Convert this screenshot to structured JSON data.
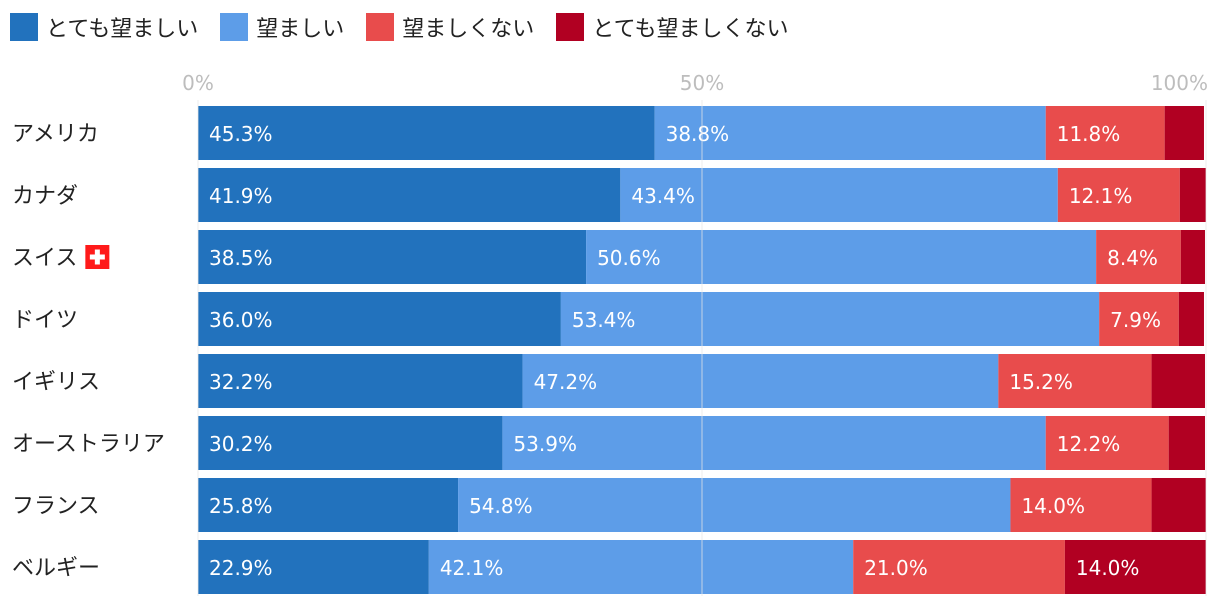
{
  "chart_data": {
    "type": "bar",
    "orientation": "horizontal",
    "stacked": true,
    "percent_scale": true,
    "title": "",
    "xlabel": "",
    "ylabel": "",
    "xlim": [
      0,
      100
    ],
    "x_ticks": [
      "0%",
      "50%",
      "100%"
    ],
    "x_tick_values": [
      0,
      50,
      100
    ],
    "legend_position": "top-left",
    "grid": true,
    "categories": [
      "アメリカ",
      "カナダ",
      "スイス",
      "ドイツ",
      "イギリス",
      "オーストラリア",
      "フランス",
      "ベルギー"
    ],
    "category_flags": [
      null,
      null,
      "swiss-flag",
      null,
      null,
      null,
      null,
      null
    ],
    "series": [
      {
        "name": "とても望ましい",
        "color": "#2272bd",
        "values": [
          45.3,
          41.9,
          38.5,
          36.0,
          32.2,
          30.2,
          25.8,
          22.9
        ],
        "labels": [
          "45.3%",
          "41.9%",
          "38.5%",
          "36.0%",
          "32.2%",
          "30.2%",
          "25.8%",
          "22.9%"
        ]
      },
      {
        "name": "望ましい",
        "color": "#5d9de8",
        "values": [
          38.8,
          43.4,
          50.6,
          53.4,
          47.2,
          53.9,
          54.8,
          42.1
        ],
        "labels": [
          "38.8%",
          "43.4%",
          "50.6%",
          "53.4%",
          "47.2%",
          "53.9%",
          "54.8%",
          "42.1%"
        ]
      },
      {
        "name": "望ましくない",
        "color": "#e84c4c",
        "values": [
          11.8,
          12.1,
          8.4,
          7.9,
          15.2,
          12.2,
          14.0,
          21.0
        ],
        "labels": [
          "11.8%",
          "12.1%",
          "8.4%",
          "7.9%",
          "15.2%",
          "12.2%",
          "14.0%",
          "21.0%"
        ]
      },
      {
        "name": "とても望ましくない",
        "color": "#b10022",
        "values": [
          3.9,
          2.6,
          2.4,
          2.5,
          5.3,
          3.6,
          5.4,
          14.0
        ],
        "labels": [
          "",
          "",
          "",
          "",
          "",
          "",
          "",
          "14.0%"
        ]
      }
    ]
  }
}
